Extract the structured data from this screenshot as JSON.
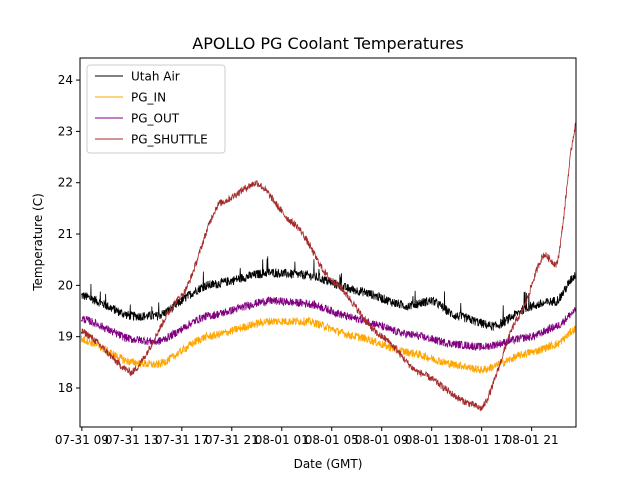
{
  "chart_data": {
    "type": "line",
    "title": "APOLLO PG Coolant Temperatures",
    "xlabel": "Date (GMT)",
    "ylabel": "Temperature (C)",
    "x_unit": "hours since 07-31 09:00 GMT",
    "xlim": [
      -0.15,
      39.55
    ],
    "ylim": [
      17.24,
      24.43
    ],
    "x_ticks": [
      {
        "value": 0,
        "label": "07-31 09"
      },
      {
        "value": 4,
        "label": "07-31 13"
      },
      {
        "value": 8,
        "label": "07-31 17"
      },
      {
        "value": 12,
        "label": "07-31 21"
      },
      {
        "value": 16,
        "label": "08-01 01"
      },
      {
        "value": 20,
        "label": "08-01 05"
      },
      {
        "value": 24,
        "label": "08-01 09"
      },
      {
        "value": 28,
        "label": "08-01 13"
      },
      {
        "value": 32,
        "label": "08-01 17"
      },
      {
        "value": 36,
        "label": "08-01 21"
      }
    ],
    "y_ticks": [
      {
        "value": 18,
        "label": "18"
      },
      {
        "value": 19,
        "label": "19"
      },
      {
        "value": 20,
        "label": "20"
      },
      {
        "value": 21,
        "label": "21"
      },
      {
        "value": 22,
        "label": "22"
      },
      {
        "value": 23,
        "label": "23"
      },
      {
        "value": 24,
        "label": "24"
      }
    ],
    "grid": false,
    "legend_position": "top-left",
    "series": [
      {
        "name": "Utah Air",
        "color": "#000000",
        "noise": 0.09,
        "x": [
          0,
          4,
          6,
          10,
          15,
          18,
          22,
          26,
          28,
          30,
          33,
          36,
          38,
          39.5
        ],
        "y": [
          19.8,
          19.4,
          19.4,
          20.0,
          20.25,
          20.2,
          19.9,
          19.6,
          19.7,
          19.4,
          19.2,
          19.6,
          19.7,
          20.2
        ]
      },
      {
        "name": "PG_IN",
        "color": "#ffa500",
        "noise": 0.08,
        "x": [
          0,
          4,
          6,
          10,
          15,
          18,
          22,
          26,
          30,
          32,
          36,
          38,
          39.5
        ],
        "y": [
          18.95,
          18.5,
          18.45,
          19.0,
          19.3,
          19.3,
          19.0,
          18.7,
          18.45,
          18.35,
          18.7,
          18.85,
          19.15
        ]
      },
      {
        "name": "PG_OUT",
        "color": "#800080",
        "noise": 0.08,
        "x": [
          0,
          4,
          6,
          10,
          15,
          18,
          22,
          26,
          30,
          32,
          36,
          38,
          39.5
        ],
        "y": [
          19.35,
          18.95,
          18.9,
          19.4,
          19.7,
          19.65,
          19.35,
          19.05,
          18.85,
          18.8,
          19.0,
          19.2,
          19.5
        ]
      },
      {
        "name": "PG_SHUTTLE",
        "color": "#a52a2a",
        "noise": 0.07,
        "x": [
          0,
          4,
          8,
          11,
          14,
          17,
          20,
          24,
          27,
          31,
          32,
          35,
          37,
          38,
          39.5
        ],
        "y": [
          19.1,
          18.3,
          19.8,
          21.6,
          22.0,
          21.2,
          20.1,
          19.0,
          18.3,
          17.7,
          17.6,
          19.4,
          20.6,
          20.4,
          23.1
        ]
      }
    ]
  }
}
